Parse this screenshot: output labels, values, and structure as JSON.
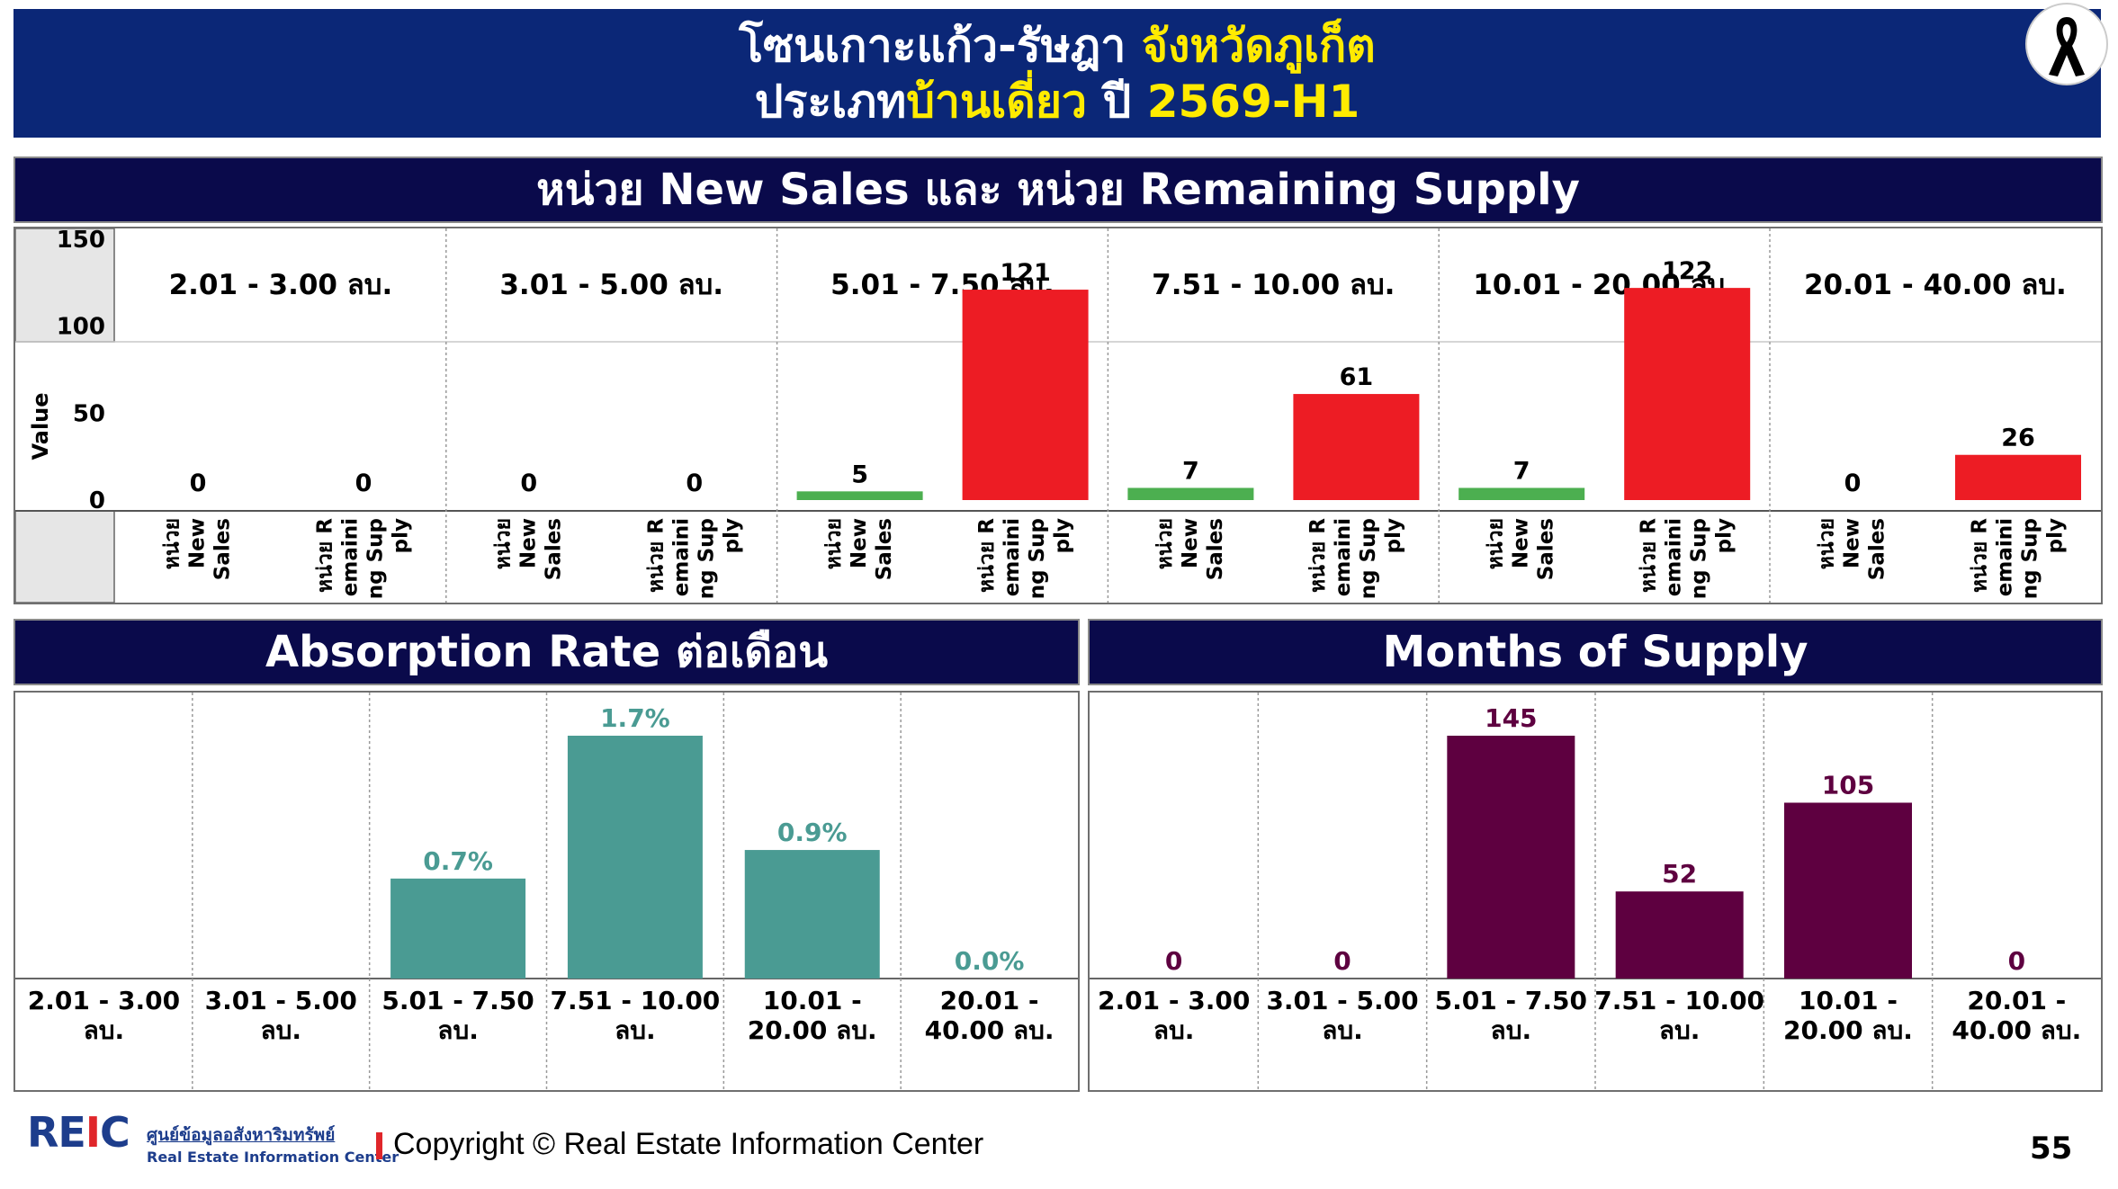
{
  "title": {
    "line1_white": "โซนเกาะแก้ว-รัษฎา ",
    "line1_yellow": "จังหวัดภูเก็ต",
    "line2_white_a": "ประเภท",
    "line2_yellow_a": "บ้านเดี่ยว",
    "line2_white_b": " ปี ",
    "line2_yellow_b": "2569-H1"
  },
  "icon": "black-mourning-ribbon",
  "colors": {
    "banner": "#0b2777",
    "section_header": "#0a0a4b",
    "new_sales": "#4caf50",
    "remaining_supply": "#ed1c24",
    "absorption": "#4a9b93",
    "months_supply": "#5e0040",
    "highlight": "#ffeb00"
  },
  "sections": {
    "top": "หน่วย New Sales และ หน่วย Remaining Supply",
    "absorption": "Absorption Rate ต่อเดือน",
    "months": "Months of Supply"
  },
  "chart_data": [
    {
      "type": "bar",
      "title": "หน่วย New Sales และ หน่วย Remaining Supply",
      "ylabel": "Value",
      "ylim": [
        0,
        150
      ],
      "yticks": [
        "150",
        "100",
        "50",
        "0"
      ],
      "categories": [
        "2.01 - 3.00 ลบ.",
        "3.01 - 5.00 ลบ.",
        "5.01 - 7.50 ลบ.",
        "7.51 - 10.00 ลบ.",
        "10.01 - 20.00 ลบ.",
        "20.01 - 40.00 ลบ."
      ],
      "series_labels": [
        [
          "หน่วย",
          "New",
          "Sales"
        ],
        [
          "หน่วย R",
          "emaini",
          "ng Sup",
          "ply"
        ]
      ],
      "series": [
        {
          "values": [
            0,
            0,
            5,
            7,
            7,
            0
          ]
        },
        {
          "values": [
            0,
            0,
            121,
            61,
            122,
            26
          ]
        }
      ]
    },
    {
      "type": "bar",
      "title": "Absorption Rate ต่อเดือน",
      "categories": [
        [
          "2.01 - 3.00",
          "ลบ."
        ],
        [
          "3.01 - 5.00",
          "ลบ."
        ],
        [
          "5.01 - 7.50",
          "ลบ."
        ],
        [
          "7.51 - 10.00",
          "ลบ."
        ],
        [
          "10.01 -",
          "20.00 ลบ."
        ],
        [
          "20.01 -",
          "40.00 ลบ."
        ]
      ],
      "values": [
        null,
        null,
        0.7,
        1.7,
        0.9,
        0.0
      ],
      "labels": [
        "",
        "",
        "0.7%",
        "1.7%",
        "0.9%",
        "0.0%"
      ],
      "ylim": [
        0,
        1.7
      ]
    },
    {
      "type": "bar",
      "title": "Months of Supply",
      "categories": [
        [
          "2.01 - 3.00",
          "ลบ."
        ],
        [
          "3.01 - 5.00",
          "ลบ."
        ],
        [
          "5.01 - 7.50",
          "ลบ."
        ],
        [
          "7.51 - 10.00",
          "ลบ."
        ],
        [
          "10.01 -",
          "20.00 ลบ."
        ],
        [
          "20.01 -",
          "40.00 ลบ."
        ]
      ],
      "values": [
        0,
        0,
        145,
        52,
        105,
        0
      ],
      "labels": [
        "0",
        "0",
        "145",
        "52",
        "105",
        "0"
      ],
      "ylim": [
        0,
        145
      ]
    }
  ],
  "footer": {
    "logo": "REIC",
    "org_th": "ศูนย์ข้อมูลอสังหาริมทรัพย์",
    "org_en": "Real Estate Information Center",
    "copyright": "Copyright © Real Estate Information Center",
    "page": "55"
  }
}
